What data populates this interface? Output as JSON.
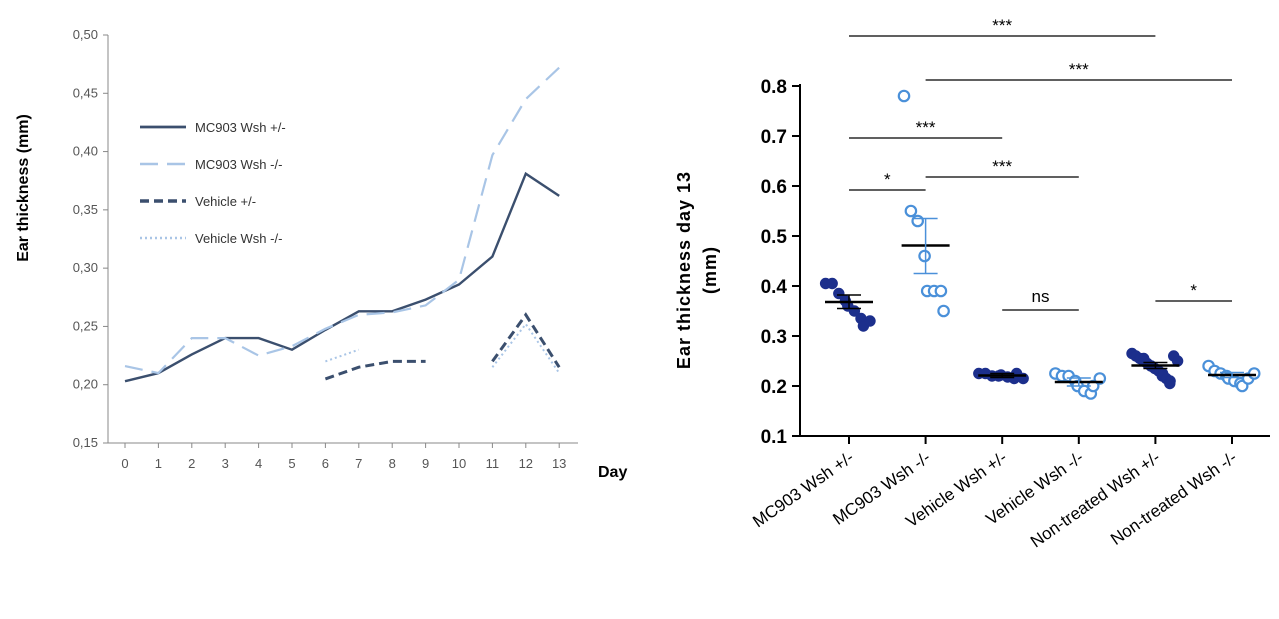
{
  "chart_data": [
    {
      "type": "line",
      "title": "",
      "xlabel": "Day",
      "ylabel": "Ear thickness (mm)",
      "x": [
        0,
        1,
        2,
        3,
        4,
        5,
        6,
        7,
        8,
        9,
        10,
        11,
        12,
        13
      ],
      "x_ticks": [
        "0",
        "1",
        "2",
        "3",
        "4",
        "5",
        "6",
        "7",
        "8",
        "9",
        "10",
        "11",
        "12",
        "13"
      ],
      "ylim": [
        0.15,
        0.5
      ],
      "y_ticks": [
        "0,15",
        "0,20",
        "0,25",
        "0,30",
        "0,35",
        "0,40",
        "0,45",
        "0,50"
      ],
      "grid": false,
      "legend": "top-left",
      "series": [
        {
          "name": "MC903 Wsh +/-",
          "color": "#3b4f6e",
          "style": "solid",
          "values": [
            0.203,
            0.21,
            0.226,
            0.24,
            0.24,
            0.23,
            0.247,
            0.263,
            0.263,
            0.273,
            0.286,
            0.31,
            0.381,
            0.362
          ]
        },
        {
          "name": "MC903 Wsh -/-",
          "color": "#a9c5e6",
          "style": "dashed",
          "values": [
            0.216,
            0.21,
            0.24,
            0.24,
            0.225,
            0.233,
            0.248,
            0.26,
            0.262,
            0.268,
            0.29,
            0.397,
            0.445,
            0.472
          ]
        },
        {
          "name": "Vehicle +/-",
          "color": "#3b4f6e",
          "style": "dashed-short",
          "values": [
            null,
            null,
            null,
            null,
            null,
            null,
            0.205,
            0.215,
            0.22,
            0.22,
            null,
            0.22,
            0.26,
            0.215
          ]
        },
        {
          "name": "Vehicle Wsh -/-",
          "color": "#a9c5e6",
          "style": "dotted",
          "values": [
            null,
            null,
            null,
            null,
            null,
            null,
            0.22,
            0.23,
            null,
            null,
            null,
            0.215,
            0.252,
            0.21
          ]
        }
      ]
    },
    {
      "type": "scatter",
      "title": "",
      "xlabel": "",
      "ylabel": "Ear thickness day 13 (mm)",
      "ylabel_lines": [
        "Ear thickness day 13",
        "(mm)"
      ],
      "ylim": [
        0.1,
        0.8
      ],
      "y_ticks": [
        "0.1",
        "0.2",
        "0.3",
        "0.4",
        "0.5",
        "0.6",
        "0.7",
        "0.8"
      ],
      "categories": [
        "MC903 Wsh +/-",
        "MC903 Wsh -/-",
        "Vehicle Wsh +/-",
        "Vehicle Wsh -/-",
        "Non-treated Wsh +/-",
        "Non-treated Wsh -/-"
      ],
      "groups": [
        {
          "name": "MC903 Wsh +/-",
          "filled": true,
          "color": "#1c2f8c",
          "points": [
            0.405,
            0.405,
            0.385,
            0.37,
            0.36,
            0.35,
            0.335,
            0.32,
            0.33
          ],
          "mean": 0.368,
          "sem": [
            0.355,
            0.382
          ]
        },
        {
          "name": "MC903 Wsh -/-",
          "filled": false,
          "color": "#4a90d9",
          "points": [
            0.78,
            0.55,
            0.53,
            0.46,
            0.39,
            0.39,
            0.39,
            0.35
          ],
          "mean": 0.481,
          "sem": [
            0.425,
            0.535
          ]
        },
        {
          "name": "Vehicle Wsh +/-",
          "filled": true,
          "color": "#1c2f8c",
          "points": [
            0.225,
            0.225,
            0.22,
            0.22,
            0.222,
            0.218,
            0.215,
            0.225,
            0.215
          ],
          "mean": 0.221,
          "sem": [
            0.217,
            0.225
          ]
        },
        {
          "name": "Vehicle Wsh -/-",
          "filled": false,
          "color": "#4a90d9",
          "points": [
            0.225,
            0.22,
            0.22,
            0.21,
            0.2,
            0.19,
            0.185,
            0.2,
            0.215
          ],
          "mean": 0.208,
          "sem": [
            0.2,
            0.216
          ]
        },
        {
          "name": "Non-treated Wsh +/-",
          "filled": true,
          "color": "#1c2f8c",
          "points": [
            0.265,
            0.26,
            0.255,
            0.255,
            0.25,
            0.245,
            0.24,
            0.24,
            0.235,
            0.23,
            0.225,
            0.22,
            0.215,
            0.21,
            0.205,
            0.26,
            0.25
          ],
          "mean": 0.241,
          "sem": [
            0.235,
            0.247
          ]
        },
        {
          "name": "Non-treated Wsh -/-",
          "filled": false,
          "color": "#4a90d9",
          "points": [
            0.24,
            0.23,
            0.225,
            0.22,
            0.215,
            0.21,
            0.205,
            0.2,
            0.215,
            0.225
          ],
          "mean": 0.222,
          "sem": [
            0.217,
            0.227
          ]
        }
      ],
      "significance": [
        {
          "from": 0,
          "to": 1,
          "label": "*"
        },
        {
          "from": 1,
          "to": 3,
          "label": "***"
        },
        {
          "from": 0,
          "to": 2,
          "label": "***"
        },
        {
          "from": 2,
          "to": 3,
          "label": "ns"
        },
        {
          "from": 4,
          "to": 5,
          "label": "*"
        },
        {
          "from": 1,
          "to": 5,
          "label": "***"
        },
        {
          "from": 0,
          "to": 4,
          "label": "***"
        }
      ]
    }
  ]
}
